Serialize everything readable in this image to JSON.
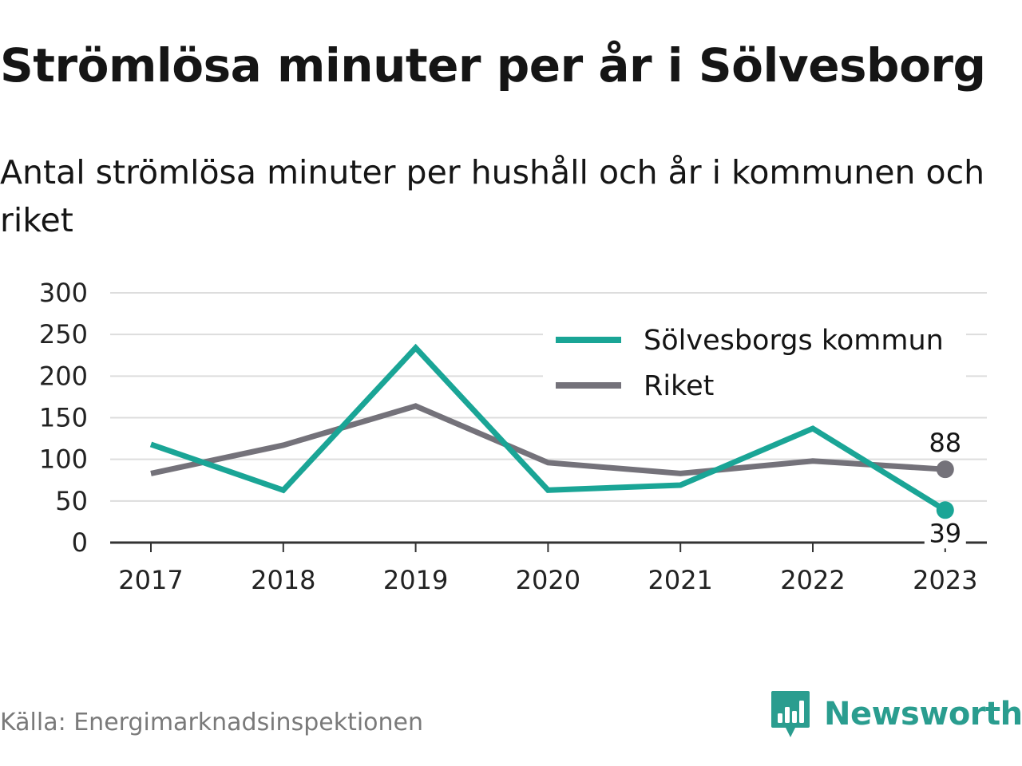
{
  "header": {
    "title": "Strömlösa minuter per år i Sölvesborg",
    "subtitle": "Antal strömlösa minuter per hushåll och år i kommunen och riket"
  },
  "footer": {
    "source": "Källa: Energimarknadsinspektionen",
    "brand": "Newsworthy",
    "brand_icon": "newsworthy-logo-icon"
  },
  "colors": {
    "kommun": "#1aa596",
    "riket": "#74727a",
    "grid": "#dddddd",
    "axis": "#333333",
    "brand": "#2a9d8f"
  },
  "chart_data": {
    "type": "line",
    "title": "",
    "xlabel": "",
    "ylabel": "",
    "categories": [
      "2017",
      "2018",
      "2019",
      "2020",
      "2021",
      "2022",
      "2023"
    ],
    "ylim": [
      0,
      300
    ],
    "yticks": [
      "0",
      "50",
      "100",
      "150",
      "200",
      "250",
      "300"
    ],
    "grid": true,
    "legend_position": "top-right",
    "series": [
      {
        "name": "Sölvesborgs kommun",
        "color": "#1aa596",
        "values": [
          118,
          63,
          234,
          63,
          69,
          137,
          39
        ],
        "end_label": "39"
      },
      {
        "name": "Riket",
        "color": "#74727a",
        "values": [
          83,
          117,
          164,
          96,
          83,
          98,
          88
        ],
        "end_label": "88"
      }
    ]
  }
}
